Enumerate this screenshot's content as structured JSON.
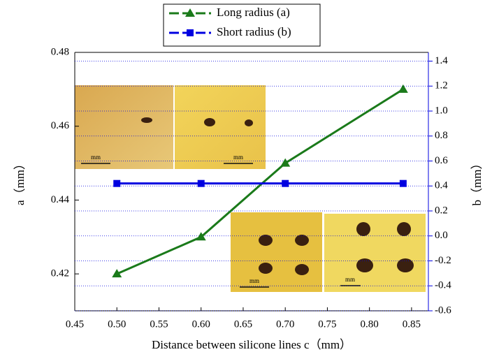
{
  "chart_data": {
    "type": "line",
    "x_label": "Distance between silicone lines c（mm）",
    "y_label": "a（mm）",
    "y2_label": "b（mm）",
    "x": [
      0.5,
      0.6,
      0.7,
      0.84
    ],
    "series": [
      {
        "name": "Long radius (a)",
        "color": "#1a7a1a",
        "marker": "triangle",
        "values": [
          0.42,
          0.43,
          0.45,
          0.47
        ]
      },
      {
        "name": "Short radius (b)",
        "color": "#0000e0",
        "marker": "square",
        "axis": "y2",
        "values": [
          0.42,
          0.42,
          0.42,
          0.42
        ]
      }
    ],
    "xlim": [
      0.45,
      0.87
    ],
    "xticks": [
      {
        "value": 0.45,
        "label": "0.45"
      },
      {
        "value": 0.5,
        "label": "0.50"
      },
      {
        "value": 0.55,
        "label": "0.55"
      },
      {
        "value": 0.6,
        "label": "0.60"
      },
      {
        "value": 0.65,
        "label": "0.65"
      },
      {
        "value": 0.7,
        "label": "0.70"
      },
      {
        "value": 0.75,
        "label": "0.75"
      },
      {
        "value": 0.8,
        "label": "0.80"
      },
      {
        "value": 0.85,
        "label": "0.85"
      }
    ],
    "ylim": [
      0.41,
      0.48
    ],
    "yticks": [
      {
        "value": 0.42,
        "label": "0.42"
      },
      {
        "value": 0.44,
        "label": "0.44"
      },
      {
        "value": 0.46,
        "label": "0.46"
      },
      {
        "value": 0.48,
        "label": "0.48"
      }
    ],
    "y2lim": [
      -0.6,
      1.47
    ],
    "y2ticks": [
      {
        "value": -0.6,
        "label": "-0.6"
      },
      {
        "value": -0.4,
        "label": "-0.4"
      },
      {
        "value": -0.2,
        "label": "-0.2"
      },
      {
        "value": 0,
        "label": "0.0"
      },
      {
        "value": 0.2,
        "label": "0.2"
      },
      {
        "value": 0.4,
        "label": "0.4"
      },
      {
        "value": 0.6,
        "label": "0.6"
      },
      {
        "value": 0.8,
        "label": "0.8"
      },
      {
        "value": 1,
        "label": "1.0"
      },
      {
        "value": 1.2,
        "label": "1.2"
      },
      {
        "value": 1.4,
        "label": "1.4"
      }
    ],
    "y2_color": "#0000e0",
    "grid": true,
    "inset_scale_labels": [
      "mm",
      "mm",
      "mm",
      "mm"
    ]
  }
}
